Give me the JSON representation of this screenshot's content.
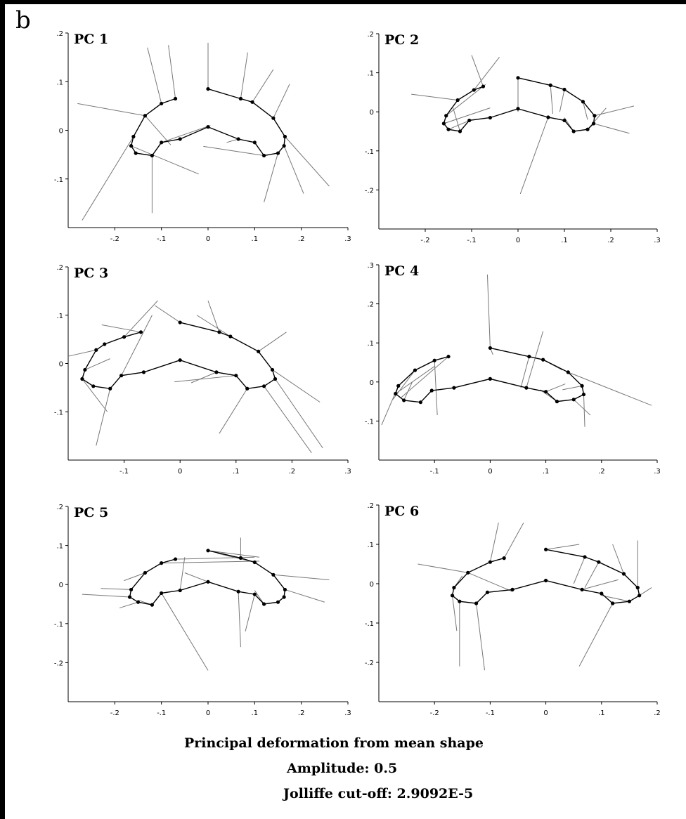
{
  "panel_label": "b",
  "caption": {
    "title": "Principal deformation from mean shape",
    "amplitude": "Amplitude: 0.5",
    "cutoff": "Jolliffe cut-off: 2.9092E-5"
  },
  "chart_data": [
    {
      "type": "scatter",
      "title": "PC 1",
      "xlim": [
        -0.3,
        0.3
      ],
      "ylim": [
        -0.2,
        0.2
      ],
      "xticks": [
        -0.2,
        -0.1,
        0,
        0.1,
        0.2,
        0.3
      ],
      "yticks": [
        0.2,
        0.1,
        0,
        -0.1
      ],
      "outline": [
        [
          -0.07,
          0.065
        ],
        [
          -0.1,
          0.055
        ],
        [
          -0.135,
          0.03
        ],
        [
          -0.16,
          -0.013
        ],
        [
          -0.165,
          -0.032
        ],
        [
          -0.155,
          -0.047
        ],
        [
          -0.12,
          -0.052
        ],
        [
          -0.1,
          -0.025
        ],
        [
          -0.06,
          -0.018
        ],
        [
          0,
          0.007
        ],
        [
          0.065,
          -0.018
        ],
        [
          0.1,
          -0.025
        ],
        [
          0.12,
          -0.052
        ],
        [
          0.15,
          -0.047
        ],
        [
          0.163,
          -0.032
        ],
        [
          0.165,
          -0.013
        ],
        [
          0.14,
          0.025
        ],
        [
          0.095,
          0.058
        ],
        [
          0.07,
          0.065
        ],
        [
          0,
          0.085
        ]
      ],
      "vectors": [
        [
          -0.07,
          0.065,
          -0.085,
          0.175
        ],
        [
          -0.1,
          0.055,
          -0.13,
          0.17
        ],
        [
          -0.135,
          0.03,
          -0.28,
          0.055
        ],
        [
          -0.135,
          0.03,
          -0.08,
          -0.03
        ],
        [
          -0.16,
          -0.013,
          -0.27,
          -0.185
        ],
        [
          -0.165,
          -0.032,
          -0.02,
          -0.09
        ],
        [
          -0.12,
          -0.052,
          -0.12,
          -0.17
        ],
        [
          -0.1,
          -0.025,
          0.005,
          0.01
        ],
        [
          0,
          0.085,
          0,
          0.18
        ],
        [
          0.07,
          0.065,
          0.085,
          0.16
        ],
        [
          0.095,
          0.058,
          0.14,
          0.125
        ],
        [
          0.14,
          0.025,
          0.175,
          0.095
        ],
        [
          0.165,
          -0.013,
          0.26,
          -0.115
        ],
        [
          0.163,
          -0.032,
          0.205,
          -0.13
        ],
        [
          0.12,
          -0.052,
          -0.01,
          -0.033
        ],
        [
          0.15,
          -0.047,
          0.12,
          -0.148
        ],
        [
          0.065,
          -0.018,
          0.04,
          -0.025
        ]
      ]
    },
    {
      "type": "scatter",
      "title": "PC 2",
      "xlim": [
        -0.3,
        0.3
      ],
      "ylim": [
        -0.3,
        0.2
      ],
      "xticks": [
        -0.2,
        -0.1,
        0,
        0.1,
        0.2,
        0.3
      ],
      "yticks": [
        0.2,
        0.1,
        0,
        -0.1,
        -0.2
      ],
      "outline": [
        [
          -0.075,
          0.065
        ],
        [
          -0.095,
          0.056
        ],
        [
          -0.13,
          0.03
        ],
        [
          -0.155,
          -0.01
        ],
        [
          -0.16,
          -0.03
        ],
        [
          -0.15,
          -0.045
        ],
        [
          -0.125,
          -0.05
        ],
        [
          -0.105,
          -0.022
        ],
        [
          -0.06,
          -0.015
        ],
        [
          0,
          0.008
        ],
        [
          0.065,
          -0.014
        ],
        [
          0.1,
          -0.022
        ],
        [
          0.12,
          -0.05
        ],
        [
          0.15,
          -0.045
        ],
        [
          0.163,
          -0.03
        ],
        [
          0.165,
          -0.01
        ],
        [
          0.14,
          0.026
        ],
        [
          0.1,
          0.057
        ],
        [
          0.07,
          0.068
        ],
        [
          0,
          0.087
        ]
      ],
      "vectors": [
        [
          -0.075,
          0.065,
          -0.1,
          0.145
        ],
        [
          -0.095,
          0.056,
          -0.04,
          0.14
        ],
        [
          -0.13,
          0.03,
          -0.23,
          0.045
        ],
        [
          -0.155,
          -0.01,
          -0.07,
          0.07
        ],
        [
          -0.16,
          -0.03,
          -0.06,
          0.01
        ],
        [
          -0.15,
          -0.045,
          -0.1,
          -0.02
        ],
        [
          -0.125,
          -0.05,
          -0.14,
          0.01
        ],
        [
          0,
          0.087,
          0,
          0.0
        ],
        [
          0.07,
          0.068,
          0.075,
          -0.005
        ],
        [
          0.1,
          0.057,
          0.09,
          0.0
        ],
        [
          0.14,
          0.026,
          0.15,
          -0.02
        ],
        [
          0.165,
          -0.01,
          0.25,
          0.015
        ],
        [
          0.163,
          -0.03,
          0.24,
          -0.055
        ],
        [
          0.12,
          -0.05,
          0.1,
          -0.015
        ],
        [
          0.065,
          -0.014,
          0.005,
          -0.21
        ],
        [
          0.15,
          -0.045,
          0.19,
          0.01
        ]
      ]
    },
    {
      "type": "scatter",
      "title": "PC 3",
      "xlim": [
        -0.2,
        0.3
      ],
      "ylim": [
        -0.2,
        0.2
      ],
      "xticks": [
        -0.1,
        0,
        0.1,
        0.2,
        0.3
      ],
      "yticks": [
        0.2,
        0.1,
        0,
        -0.1
      ],
      "outline": [
        [
          -0.07,
          0.065
        ],
        [
          -0.1,
          0.055
        ],
        [
          -0.135,
          0.04
        ],
        [
          -0.15,
          0.028
        ],
        [
          -0.17,
          -0.013
        ],
        [
          -0.175,
          -0.032
        ],
        [
          -0.155,
          -0.047
        ],
        [
          -0.125,
          -0.052
        ],
        [
          -0.105,
          -0.025
        ],
        [
          -0.065,
          -0.018
        ],
        [
          0,
          0.007
        ],
        [
          0.065,
          -0.018
        ],
        [
          0.1,
          -0.025
        ],
        [
          0.12,
          -0.052
        ],
        [
          0.15,
          -0.047
        ],
        [
          0.17,
          -0.032
        ],
        [
          0.165,
          -0.013
        ],
        [
          0.14,
          0.025
        ],
        [
          0.09,
          0.056
        ],
        [
          0.07,
          0.065
        ],
        [
          0,
          0.085
        ]
      ],
      "vectors": [
        [
          -0.07,
          0.065,
          -0.14,
          0.08
        ],
        [
          -0.1,
          0.055,
          -0.04,
          0.13
        ],
        [
          -0.15,
          0.028,
          -0.2,
          0.015
        ],
        [
          -0.17,
          -0.013,
          -0.125,
          0.01
        ],
        [
          -0.175,
          -0.032,
          -0.13,
          -0.1
        ],
        [
          -0.125,
          -0.052,
          -0.15,
          -0.17
        ],
        [
          -0.105,
          -0.025,
          -0.05,
          0.1
        ],
        [
          0,
          0.085,
          -0.045,
          0.12
        ],
        [
          0.07,
          0.065,
          0.05,
          0.13
        ],
        [
          0.09,
          0.056,
          0.03,
          0.1
        ],
        [
          0.14,
          0.025,
          0.19,
          0.065
        ],
        [
          0.165,
          -0.013,
          0.25,
          -0.08
        ],
        [
          0.17,
          -0.032,
          0.255,
          -0.175
        ],
        [
          0.15,
          -0.047,
          0.235,
          -0.185
        ],
        [
          0.12,
          -0.052,
          0.07,
          -0.145
        ],
        [
          0.1,
          -0.025,
          -0.01,
          -0.038
        ],
        [
          0.065,
          -0.018,
          0.02,
          -0.04
        ]
      ]
    },
    {
      "type": "scatter",
      "title": "PC 4",
      "xlim": [
        -0.2,
        0.3
      ],
      "ylim": [
        -0.2,
        0.3
      ],
      "xticks": [
        -0.1,
        0,
        0.1,
        0.2,
        0.3
      ],
      "yticks": [
        0.3,
        0.2,
        0.1,
        0,
        -0.1
      ],
      "outline": [
        [
          -0.075,
          0.065
        ],
        [
          -0.1,
          0.055
        ],
        [
          -0.135,
          0.03
        ],
        [
          -0.165,
          -0.01
        ],
        [
          -0.17,
          -0.03
        ],
        [
          -0.155,
          -0.047
        ],
        [
          -0.125,
          -0.052
        ],
        [
          -0.105,
          -0.022
        ],
        [
          -0.065,
          -0.015
        ],
        [
          0,
          0.008
        ],
        [
          0.065,
          -0.015
        ],
        [
          0.1,
          -0.025
        ],
        [
          0.12,
          -0.05
        ],
        [
          0.15,
          -0.045
        ],
        [
          0.168,
          -0.032
        ],
        [
          0.165,
          -0.01
        ],
        [
          0.14,
          0.025
        ],
        [
          0.095,
          0.057
        ],
        [
          0.07,
          0.065
        ],
        [
          0,
          0.087
        ]
      ],
      "vectors": [
        [
          -0.075,
          0.065,
          -0.16,
          -0.04
        ],
        [
          -0.1,
          0.055,
          -0.095,
          -0.085
        ],
        [
          -0.135,
          0.03,
          -0.175,
          -0.045
        ],
        [
          -0.165,
          -0.01,
          -0.195,
          -0.11
        ],
        [
          -0.17,
          -0.03,
          -0.1,
          0.04
        ],
        [
          -0.155,
          -0.047,
          -0.14,
          0.0
        ],
        [
          0,
          0.087,
          -0.005,
          0.275
        ],
        [
          0,
          0.087,
          0.005,
          0.07
        ],
        [
          0.07,
          0.065,
          0.055,
          -0.015
        ],
        [
          0.095,
          0.057,
          0.13,
          0.03
        ],
        [
          0.14,
          0.025,
          0.29,
          -0.06
        ],
        [
          0.165,
          -0.01,
          0.13,
          -0.02
        ],
        [
          0.168,
          -0.032,
          0.17,
          -0.115
        ],
        [
          0.15,
          -0.045,
          0.18,
          -0.085
        ],
        [
          0.12,
          -0.05,
          0.09,
          -0.02
        ],
        [
          0.065,
          -0.015,
          0.095,
          0.13
        ],
        [
          0.1,
          -0.025,
          0.135,
          -0.005
        ]
      ]
    },
    {
      "type": "scatter",
      "title": "PC 5",
      "xlim": [
        -0.3,
        0.3
      ],
      "ylim": [
        -0.3,
        0.2
      ],
      "xticks": [
        -0.2,
        -0.1,
        0,
        0.1,
        0.2,
        0.3
      ],
      "yticks": [
        0.2,
        0.1,
        0,
        -0.1,
        -0.2
      ],
      "outline": [
        [
          -0.07,
          0.065
        ],
        [
          -0.1,
          0.055
        ],
        [
          -0.135,
          0.03
        ],
        [
          -0.165,
          -0.013
        ],
        [
          -0.168,
          -0.032
        ],
        [
          -0.15,
          -0.045
        ],
        [
          -0.12,
          -0.052
        ],
        [
          -0.1,
          -0.022
        ],
        [
          -0.06,
          -0.015
        ],
        [
          0,
          0.007
        ],
        [
          0.065,
          -0.018
        ],
        [
          0.1,
          -0.025
        ],
        [
          0.12,
          -0.05
        ],
        [
          0.15,
          -0.045
        ],
        [
          0.163,
          -0.032
        ],
        [
          0.165,
          -0.013
        ],
        [
          0.14,
          0.025
        ],
        [
          0.1,
          0.057
        ],
        [
          0.07,
          0.068
        ],
        [
          0,
          0.087
        ]
      ],
      "vectors": [
        [
          -0.07,
          0.065,
          0.1,
          0.07
        ],
        [
          -0.1,
          0.055,
          0.11,
          0.06
        ],
        [
          -0.135,
          0.03,
          -0.18,
          0.01
        ],
        [
          -0.165,
          -0.013,
          -0.23,
          -0.01
        ],
        [
          -0.168,
          -0.032,
          -0.27,
          -0.025
        ],
        [
          -0.15,
          -0.045,
          -0.19,
          -0.06
        ],
        [
          -0.12,
          -0.052,
          -0.15,
          -0.04
        ],
        [
          -0.1,
          -0.022,
          0.0,
          -0.22
        ],
        [
          0,
          0.087,
          0.11,
          0.07
        ],
        [
          0.07,
          0.068,
          0.07,
          0.12
        ],
        [
          0.1,
          0.057,
          0.02,
          0.08
        ],
        [
          0.14,
          0.025,
          0.26,
          0.012
        ],
        [
          0.165,
          -0.013,
          0.25,
          -0.045
        ],
        [
          0.12,
          -0.05,
          0.1,
          -0.015
        ],
        [
          0.065,
          -0.018,
          0.07,
          -0.16
        ],
        [
          0.1,
          -0.025,
          0.08,
          -0.12
        ],
        [
          -0.06,
          -0.015,
          -0.05,
          0.07
        ],
        [
          0,
          0.007,
          -0.05,
          0.03
        ]
      ]
    },
    {
      "type": "scatter",
      "title": "PC 6",
      "xlim": [
        -0.3,
        0.2
      ],
      "ylim": [
        -0.3,
        0.2
      ],
      "xticks": [
        -0.2,
        -0.1,
        0,
        0.1,
        0.2
      ],
      "yticks": [
        0.2,
        0.1,
        0,
        -0.1,
        -0.2
      ],
      "outline": [
        [
          -0.075,
          0.065
        ],
        [
          -0.1,
          0.055
        ],
        [
          -0.14,
          0.028
        ],
        [
          -0.165,
          -0.01
        ],
        [
          -0.168,
          -0.03
        ],
        [
          -0.155,
          -0.045
        ],
        [
          -0.125,
          -0.05
        ],
        [
          -0.105,
          -0.022
        ],
        [
          -0.06,
          -0.015
        ],
        [
          0,
          0.008
        ],
        [
          0.065,
          -0.015
        ],
        [
          0.1,
          -0.025
        ],
        [
          0.12,
          -0.05
        ],
        [
          0.15,
          -0.045
        ],
        [
          0.168,
          -0.03
        ],
        [
          0.165,
          -0.01
        ],
        [
          0.14,
          0.025
        ],
        [
          0.095,
          0.055
        ],
        [
          0.07,
          0.068
        ],
        [
          0,
          0.087
        ]
      ],
      "vectors": [
        [
          -0.075,
          0.065,
          -0.04,
          0.155
        ],
        [
          -0.1,
          0.055,
          -0.085,
          0.155
        ],
        [
          -0.14,
          0.028,
          -0.23,
          0.05
        ],
        [
          -0.14,
          0.028,
          -0.06,
          -0.02
        ],
        [
          -0.165,
          -0.01,
          -0.15,
          0.02
        ],
        [
          -0.168,
          -0.03,
          -0.16,
          -0.12
        ],
        [
          -0.155,
          -0.045,
          -0.155,
          -0.21
        ],
        [
          -0.125,
          -0.05,
          -0.11,
          -0.22
        ],
        [
          0,
          0.087,
          0.06,
          0.1
        ],
        [
          0.07,
          0.068,
          0.05,
          0.0
        ],
        [
          0.095,
          0.055,
          0.07,
          -0.01
        ],
        [
          0.14,
          0.025,
          0.12,
          0.1
        ],
        [
          0.165,
          -0.01,
          0.165,
          0.11
        ],
        [
          0.168,
          -0.03,
          0.19,
          -0.01
        ],
        [
          0.15,
          -0.045,
          0.1,
          -0.03
        ],
        [
          0.12,
          -0.05,
          0.06,
          -0.21
        ],
        [
          0.065,
          -0.015,
          0.13,
          0.01
        ]
      ]
    }
  ]
}
